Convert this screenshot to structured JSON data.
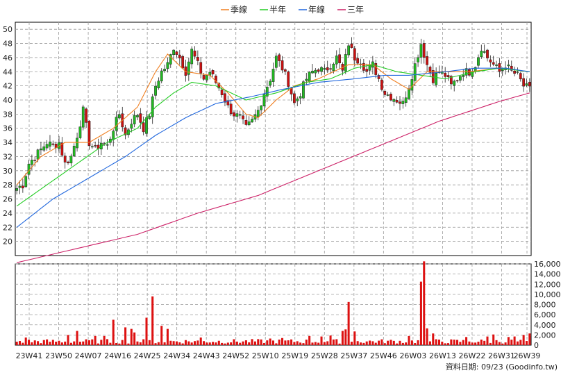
{
  "legend": [
    {
      "label": "季線",
      "color": "#f07f20"
    },
    {
      "label": "半年",
      "color": "#22cc22"
    },
    {
      "label": "年線",
      "color": "#1f66dd"
    },
    {
      "label": "三年",
      "color": "#cc1f66"
    }
  ],
  "footer": {
    "source": "資料日期: 09/23  (Goodinfo.tw)"
  },
  "chart_data": [
    {
      "type": "candlestick",
      "ylim": [
        18,
        51
      ],
      "y_ticks": [
        20,
        22,
        24,
        26,
        28,
        30,
        32,
        34,
        36,
        38,
        40,
        42,
        44,
        46,
        48,
        50
      ],
      "x_tick_labels": [
        "23W41",
        "23W50",
        "24W07",
        "24W16",
        "24W25",
        "24W34",
        "24W43",
        "24W52",
        "25W10",
        "25W19",
        "25W28",
        "25W37",
        "25W46",
        "26W03",
        "26W13",
        "26W22",
        "26W31",
        "26W39"
      ],
      "grid": true,
      "up_color": "#22bb22",
      "down_color": "#cc1111",
      "close_anchors": [
        [
          0,
          27.5
        ],
        [
          2,
          28
        ],
        [
          4,
          31
        ],
        [
          6,
          32
        ],
        [
          8,
          33
        ],
        [
          10,
          34
        ],
        [
          12,
          33.5
        ],
        [
          14,
          34
        ],
        [
          16,
          31
        ],
        [
          18,
          32
        ],
        [
          20,
          35
        ],
        [
          22,
          38.5
        ],
        [
          24,
          34
        ],
        [
          26,
          33
        ],
        [
          28,
          34
        ],
        [
          30,
          33.5
        ],
        [
          32,
          36
        ],
        [
          34,
          38
        ],
        [
          36,
          35
        ],
        [
          38,
          37
        ],
        [
          40,
          38
        ],
        [
          42,
          36
        ],
        [
          44,
          38
        ],
        [
          46,
          42
        ],
        [
          48,
          44
        ],
        [
          50,
          45
        ],
        [
          52,
          47.5
        ],
        [
          54,
          46
        ],
        [
          56,
          44
        ],
        [
          58,
          47
        ],
        [
          60,
          45
        ],
        [
          62,
          43
        ],
        [
          64,
          44
        ],
        [
          66,
          42.5
        ],
        [
          68,
          41
        ],
        [
          70,
          39
        ],
        [
          72,
          38
        ],
        [
          74,
          37.5
        ],
        [
          76,
          36
        ],
        [
          78,
          37
        ],
        [
          80,
          38.5
        ],
        [
          82,
          41
        ],
        [
          84,
          43
        ],
        [
          86,
          46
        ],
        [
          88,
          44.5
        ],
        [
          90,
          42.5
        ],
        [
          92,
          39.5
        ],
        [
          94,
          41
        ],
        [
          96,
          43
        ],
        [
          98,
          44
        ],
        [
          100,
          44.5
        ],
        [
          102,
          44
        ],
        [
          104,
          45
        ],
        [
          106,
          46
        ],
        [
          108,
          44
        ],
        [
          110,
          48
        ],
        [
          112,
          46
        ],
        [
          114,
          45.5
        ],
        [
          116,
          44
        ],
        [
          118,
          45
        ],
        [
          120,
          43
        ],
        [
          122,
          41
        ],
        [
          124,
          40.5
        ],
        [
          126,
          40
        ],
        [
          128,
          39.5
        ],
        [
          130,
          42
        ],
        [
          132,
          45
        ],
        [
          134,
          48
        ],
        [
          136,
          45
        ],
        [
          138,
          43
        ],
        [
          140,
          44
        ],
        [
          142,
          43.5
        ],
        [
          144,
          42
        ],
        [
          146,
          43
        ],
        [
          148,
          44
        ],
        [
          150,
          44
        ],
        [
          152,
          45
        ],
        [
          154,
          47.5
        ],
        [
          156,
          46
        ],
        [
          158,
          45
        ],
        [
          160,
          44
        ],
        [
          162,
          45
        ],
        [
          164,
          44
        ],
        [
          166,
          43.5
        ],
        [
          168,
          42
        ],
        [
          170,
          41.5
        ]
      ],
      "ma_anchors": {
        "季線": [
          [
            0,
            28
          ],
          [
            8,
            32
          ],
          [
            16,
            34
          ],
          [
            24,
            34
          ],
          [
            32,
            36
          ],
          [
            40,
            39
          ],
          [
            46,
            44
          ],
          [
            50,
            46.5
          ],
          [
            56,
            44
          ],
          [
            64,
            43.5
          ],
          [
            70,
            41
          ],
          [
            76,
            38
          ],
          [
            80,
            37.5
          ],
          [
            86,
            40
          ],
          [
            92,
            42
          ],
          [
            100,
            43
          ],
          [
            110,
            45
          ],
          [
            118,
            45
          ],
          [
            124,
            43
          ],
          [
            130,
            41.5
          ],
          [
            136,
            44
          ],
          [
            142,
            44
          ],
          [
            150,
            44
          ],
          [
            160,
            44.5
          ],
          [
            170,
            44
          ]
        ],
        "半年": [
          [
            0,
            25
          ],
          [
            10,
            28
          ],
          [
            20,
            31
          ],
          [
            30,
            34
          ],
          [
            40,
            36
          ],
          [
            46,
            39
          ],
          [
            52,
            41
          ],
          [
            58,
            42.5
          ],
          [
            66,
            42
          ],
          [
            76,
            40
          ],
          [
            86,
            41
          ],
          [
            96,
            42.5
          ],
          [
            104,
            43
          ],
          [
            112,
            44.5
          ],
          [
            118,
            45
          ],
          [
            126,
            44
          ],
          [
            134,
            43.5
          ],
          [
            142,
            43
          ],
          [
            152,
            44
          ],
          [
            160,
            44.5
          ],
          [
            170,
            44
          ]
        ],
        "年線": [
          [
            0,
            22
          ],
          [
            12,
            26
          ],
          [
            24,
            29
          ],
          [
            36,
            32
          ],
          [
            46,
            35
          ],
          [
            56,
            37.5
          ],
          [
            66,
            39.5
          ],
          [
            78,
            40.5
          ],
          [
            88,
            41.5
          ],
          [
            100,
            42.5
          ],
          [
            112,
            43
          ],
          [
            122,
            43.5
          ],
          [
            130,
            43.5
          ],
          [
            142,
            44
          ],
          [
            152,
            44.5
          ],
          [
            162,
            44.5
          ],
          [
            170,
            44
          ]
        ],
        "三年": [
          [
            0,
            17
          ],
          [
            20,
            19
          ],
          [
            40,
            21
          ],
          [
            60,
            24
          ],
          [
            80,
            26.5
          ],
          [
            100,
            30
          ],
          [
            120,
            33.5
          ],
          [
            140,
            37
          ],
          [
            160,
            39.8
          ],
          [
            170,
            41
          ]
        ]
      }
    },
    {
      "type": "bar",
      "ylim": [
        0,
        16000
      ],
      "y_ticks": [
        "0",
        "2,000",
        "4,000",
        "6,000",
        "8,000",
        "10,000",
        "12,000",
        "14,000",
        "16,000"
      ],
      "bar_color": "#dd1111",
      "spikes": [
        [
          3,
          1500
        ],
        [
          17,
          2000
        ],
        [
          20,
          2800
        ],
        [
          26,
          1800
        ],
        [
          29,
          1800
        ],
        [
          32,
          5000
        ],
        [
          36,
          3500
        ],
        [
          38,
          3200
        ],
        [
          39,
          2500
        ],
        [
          43,
          5400
        ],
        [
          45,
          9600
        ],
        [
          48,
          3800
        ],
        [
          50,
          3200
        ],
        [
          61,
          1500
        ],
        [
          84,
          1300
        ],
        [
          88,
          1400
        ],
        [
          97,
          1800
        ],
        [
          101,
          1700
        ],
        [
          104,
          1900
        ],
        [
          108,
          2800
        ],
        [
          109,
          3100
        ],
        [
          110,
          8500
        ],
        [
          112,
          2700
        ],
        [
          130,
          1800
        ],
        [
          134,
          12500
        ],
        [
          135,
          16500
        ],
        [
          136,
          3300
        ],
        [
          138,
          2300
        ],
        [
          149,
          1600
        ],
        [
          156,
          1700
        ],
        [
          158,
          2100
        ],
        [
          163,
          1600
        ],
        [
          165,
          1700
        ],
        [
          168,
          2000
        ],
        [
          170,
          2300
        ]
      ]
    }
  ]
}
